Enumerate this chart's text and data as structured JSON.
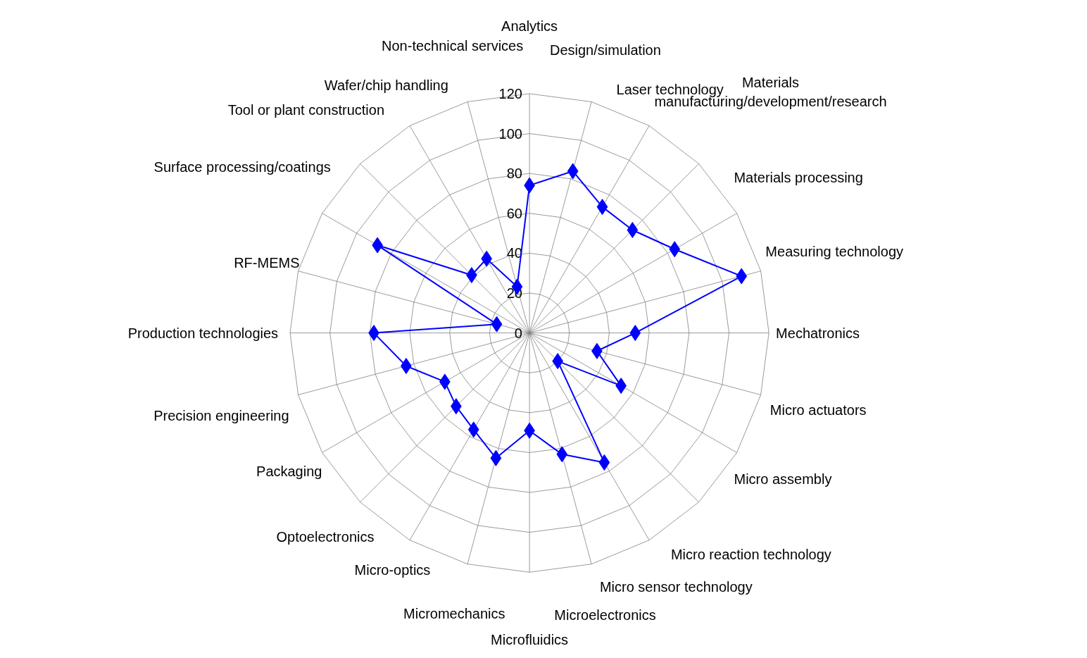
{
  "chart_data": {
    "type": "radar",
    "categories": [
      "Analytics",
      "Design/simulation",
      "Laser technology",
      "Materials manufacturing/development/research",
      "Materials processing",
      "Measuring technology",
      "Mechatronics",
      "Micro actuators",
      "Micro assembly",
      "Micro reaction technology",
      "Micro sensor technology",
      "Microelectronics",
      "Microfluidics",
      "Micromechanics",
      "Micro-optics",
      "Optoelectronics",
      "Packaging",
      "Precision engineering",
      "Production technologies",
      "RF-MEMS",
      "Surface processing/coatings",
      "Tool or plant construction",
      "Wafer/chip handling",
      "Non-technical services"
    ],
    "series": [
      {
        "color": "#0000ff",
        "values": [
          74,
          84,
          73,
          73,
          84,
          110,
          53,
          35,
          53,
          20,
          75,
          63,
          49,
          65,
          56,
          52,
          49,
          64,
          78,
          17,
          88,
          41,
          43,
          24
        ]
      }
    ],
    "ylim": [
      0,
      120
    ],
    "yticks": [
      0,
      20,
      40,
      60,
      80,
      100,
      120
    ],
    "grid": true,
    "marker": "diamond",
    "line_style": "solid"
  }
}
